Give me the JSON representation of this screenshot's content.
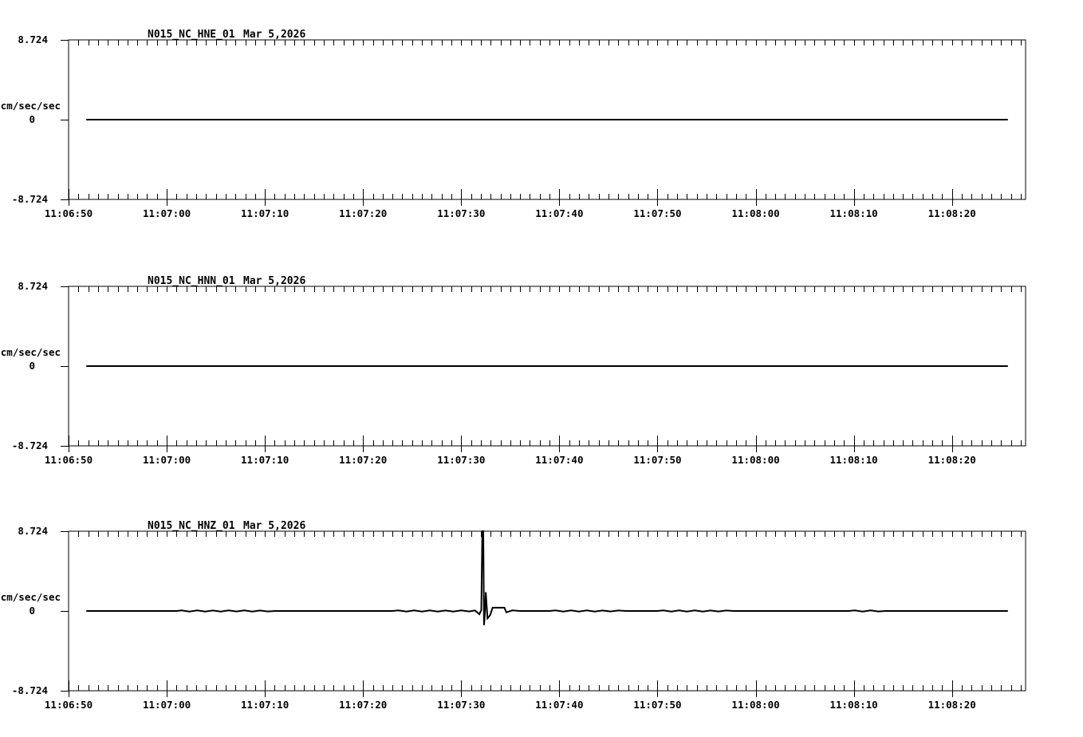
{
  "page": {
    "background_color": "#ffffff",
    "ink_color": "#000000",
    "description": "Three-channel strong-motion seismogram plot"
  },
  "chart_data": [
    {
      "type": "line",
      "title": "N015_NC_HNE_01",
      "date_label": "Mar 5,2026",
      "ylabel": "cm/sec/sec",
      "y_tick_labels": [
        "8.724",
        "0",
        "-8.724"
      ],
      "y_tick_values": [
        8.724,
        0,
        -8.724
      ],
      "ylim": [
        -8.724,
        8.724
      ],
      "x_tick_labels": [
        "11:06:50",
        "11:07:00",
        "11:07:10",
        "11:07:20",
        "11:07:30",
        "11:07:40",
        "11:07:50",
        "11:08:00",
        "11:08:10",
        "11:08:20"
      ],
      "x_major_interval_sec": 10,
      "x_minor_interval_sec": 1,
      "x_span_sec": 97.5,
      "grid": false,
      "legend": "none",
      "trace": [
        [
          1.8,
          0
        ],
        [
          95.7,
          0
        ]
      ]
    },
    {
      "type": "line",
      "title": "N015_NC_HNN_01",
      "date_label": "Mar 5,2026",
      "ylabel": "cm/sec/sec",
      "y_tick_labels": [
        "8.724",
        "0",
        "-8.724"
      ],
      "y_tick_values": [
        8.724,
        0,
        -8.724
      ],
      "ylim": [
        -8.724,
        8.724
      ],
      "x_tick_labels": [
        "11:06:50",
        "11:07:00",
        "11:07:10",
        "11:07:20",
        "11:07:30",
        "11:07:40",
        "11:07:50",
        "11:08:00",
        "11:08:10",
        "11:08:20"
      ],
      "x_major_interval_sec": 10,
      "x_minor_interval_sec": 1,
      "x_span_sec": 97.5,
      "grid": false,
      "legend": "none",
      "trace": [
        [
          1.8,
          0
        ],
        [
          95.7,
          0
        ]
      ]
    },
    {
      "type": "line",
      "title": "N015_NC_HNZ_01",
      "date_label": "Mar 5,2026",
      "ylabel": "cm/sec/sec",
      "y_tick_labels": [
        "8.724",
        "0",
        "-8.724"
      ],
      "y_tick_values": [
        8.724,
        0,
        -8.724
      ],
      "ylim": [
        -8.724,
        8.724
      ],
      "x_tick_labels": [
        "11:06:50",
        "11:07:00",
        "11:07:10",
        "11:07:20",
        "11:07:30",
        "11:07:40",
        "11:07:50",
        "11:08:00",
        "11:08:10",
        "11:08:20"
      ],
      "x_major_interval_sec": 10,
      "x_minor_interval_sec": 1,
      "x_span_sec": 97.5,
      "grid": false,
      "legend": "none",
      "spike": {
        "time_label": "11:07:32",
        "seconds_after_start": 42.2,
        "amplitude_clipped_at": 8.724
      },
      "trace": [
        [
          1.8,
          0
        ],
        [
          11.0,
          0
        ],
        [
          11.5,
          0.06
        ],
        [
          12.3,
          -0.06
        ],
        [
          13.1,
          0.06
        ],
        [
          13.9,
          -0.06
        ],
        [
          14.7,
          0.05
        ],
        [
          15.5,
          -0.06
        ],
        [
          16.3,
          0.06
        ],
        [
          17.1,
          -0.05
        ],
        [
          17.9,
          0.06
        ],
        [
          18.7,
          -0.06
        ],
        [
          19.5,
          0.05
        ],
        [
          20.3,
          -0.05
        ],
        [
          21.0,
          0
        ],
        [
          33.0,
          0
        ],
        [
          33.6,
          0.06
        ],
        [
          34.4,
          -0.06
        ],
        [
          35.2,
          0.06
        ],
        [
          36.0,
          -0.06
        ],
        [
          36.8,
          0.06
        ],
        [
          37.6,
          -0.06
        ],
        [
          38.4,
          0.05
        ],
        [
          39.2,
          -0.06
        ],
        [
          40.0,
          0.06
        ],
        [
          40.8,
          -0.05
        ],
        [
          41.4,
          0.06
        ],
        [
          41.85,
          -0.35
        ],
        [
          42.05,
          0.1
        ],
        [
          42.15,
          8.724
        ],
        [
          42.25,
          8.724
        ],
        [
          42.32,
          -1.55
        ],
        [
          42.42,
          -0.25
        ],
        [
          42.5,
          2.05
        ],
        [
          42.68,
          -0.8
        ],
        [
          42.95,
          -0.45
        ],
        [
          43.2,
          0.36
        ],
        [
          44.4,
          0.36
        ],
        [
          44.6,
          -0.15
        ],
        [
          45.2,
          0.06
        ],
        [
          46.0,
          0
        ],
        [
          49.0,
          0
        ],
        [
          49.6,
          0.06
        ],
        [
          50.4,
          -0.06
        ],
        [
          51.2,
          0.06
        ],
        [
          52.0,
          -0.06
        ],
        [
          52.8,
          0.06
        ],
        [
          53.6,
          -0.06
        ],
        [
          54.4,
          0.05
        ],
        [
          55.2,
          -0.05
        ],
        [
          56.0,
          0.05
        ],
        [
          56.8,
          0
        ],
        [
          60.0,
          0
        ],
        [
          60.6,
          0.06
        ],
        [
          61.4,
          -0.06
        ],
        [
          62.2,
          0.06
        ],
        [
          63.0,
          -0.06
        ],
        [
          63.8,
          0.06
        ],
        [
          64.6,
          -0.06
        ],
        [
          65.4,
          0.05
        ],
        [
          66.2,
          -0.05
        ],
        [
          67.0,
          0.05
        ],
        [
          67.8,
          0
        ],
        [
          79.5,
          0
        ],
        [
          80.1,
          0.06
        ],
        [
          80.9,
          -0.06
        ],
        [
          81.7,
          0.06
        ],
        [
          82.5,
          -0.05
        ],
        [
          83.2,
          0
        ],
        [
          95.7,
          0
        ]
      ]
    }
  ]
}
